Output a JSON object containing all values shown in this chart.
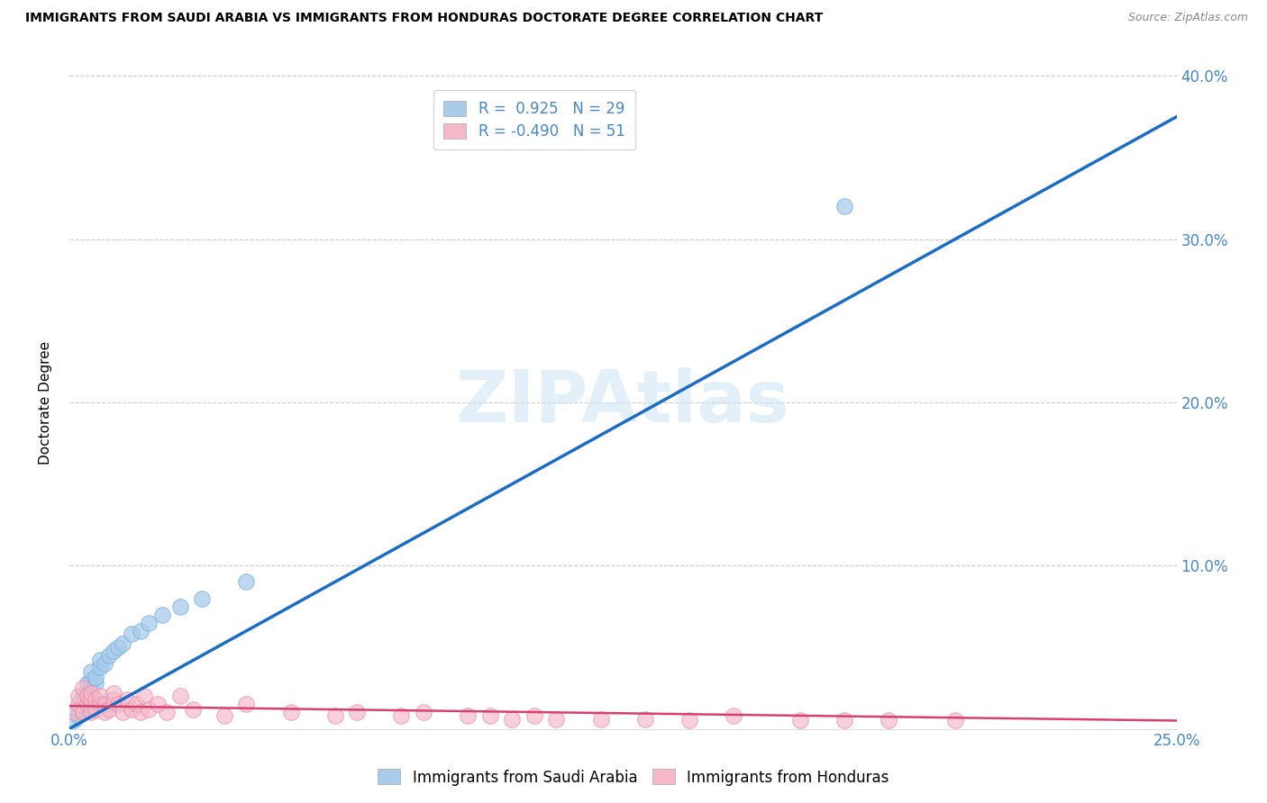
{
  "title": "IMMIGRANTS FROM SAUDI ARABIA VS IMMIGRANTS FROM HONDURAS DOCTORATE DEGREE CORRELATION CHART",
  "source": "Source: ZipAtlas.com",
  "ylabel": "Doctorate Degree",
  "xlim": [
    0.0,
    0.25
  ],
  "ylim": [
    0.0,
    0.4
  ],
  "watermark": "ZIPAtlas",
  "legend_R1": "R =  0.925",
  "legend_N1": "N = 29",
  "legend_R2": "R = -0.490",
  "legend_N2": "N = 51",
  "color_saudi": "#a8ccea",
  "color_saudi_edge": "#7ab3e0",
  "color_honduras": "#f4b8c8",
  "color_honduras_edge": "#e888a8",
  "color_line_saudi": "#1a6cc8",
  "color_line_honduras": "#d84070",
  "color_axis": "#4488cc",
  "saudi_x": [
    0.001,
    0.002,
    0.002,
    0.003,
    0.003,
    0.003,
    0.004,
    0.004,
    0.004,
    0.005,
    0.005,
    0.005,
    0.006,
    0.006,
    0.007,
    0.007,
    0.008,
    0.009,
    0.01,
    0.011,
    0.012,
    0.014,
    0.016,
    0.018,
    0.021,
    0.025,
    0.03,
    0.04,
    0.175
  ],
  "saudi_y": [
    0.005,
    0.008,
    0.012,
    0.01,
    0.015,
    0.02,
    0.018,
    0.022,
    0.028,
    0.025,
    0.03,
    0.035,
    0.028,
    0.032,
    0.038,
    0.042,
    0.04,
    0.045,
    0.048,
    0.05,
    0.052,
    0.058,
    0.06,
    0.065,
    0.07,
    0.075,
    0.08,
    0.09,
    0.32
  ],
  "honduras_x": [
    0.001,
    0.002,
    0.002,
    0.003,
    0.003,
    0.004,
    0.004,
    0.005,
    0.005,
    0.005,
    0.006,
    0.006,
    0.007,
    0.007,
    0.008,
    0.008,
    0.009,
    0.01,
    0.01,
    0.011,
    0.012,
    0.013,
    0.014,
    0.015,
    0.016,
    0.017,
    0.018,
    0.02,
    0.022,
    0.025,
    0.028,
    0.035,
    0.04,
    0.05,
    0.06,
    0.065,
    0.075,
    0.08,
    0.09,
    0.095,
    0.1,
    0.105,
    0.11,
    0.12,
    0.13,
    0.14,
    0.15,
    0.165,
    0.175,
    0.185,
    0.2
  ],
  "honduras_y": [
    0.01,
    0.015,
    0.02,
    0.01,
    0.025,
    0.015,
    0.02,
    0.01,
    0.018,
    0.022,
    0.012,
    0.018,
    0.015,
    0.02,
    0.01,
    0.015,
    0.012,
    0.018,
    0.022,
    0.015,
    0.01,
    0.018,
    0.012,
    0.015,
    0.01,
    0.02,
    0.012,
    0.015,
    0.01,
    0.02,
    0.012,
    0.008,
    0.015,
    0.01,
    0.008,
    0.01,
    0.008,
    0.01,
    0.008,
    0.008,
    0.006,
    0.008,
    0.006,
    0.006,
    0.006,
    0.005,
    0.008,
    0.005,
    0.005,
    0.005,
    0.005
  ],
  "line_saudi_x0": 0.0,
  "line_saudi_y0": 0.0,
  "line_saudi_x1": 0.25,
  "line_saudi_y1": 0.375,
  "line_honduras_x0": 0.0,
  "line_honduras_y0": 0.014,
  "line_honduras_x1": 0.25,
  "line_honduras_y1": 0.005
}
